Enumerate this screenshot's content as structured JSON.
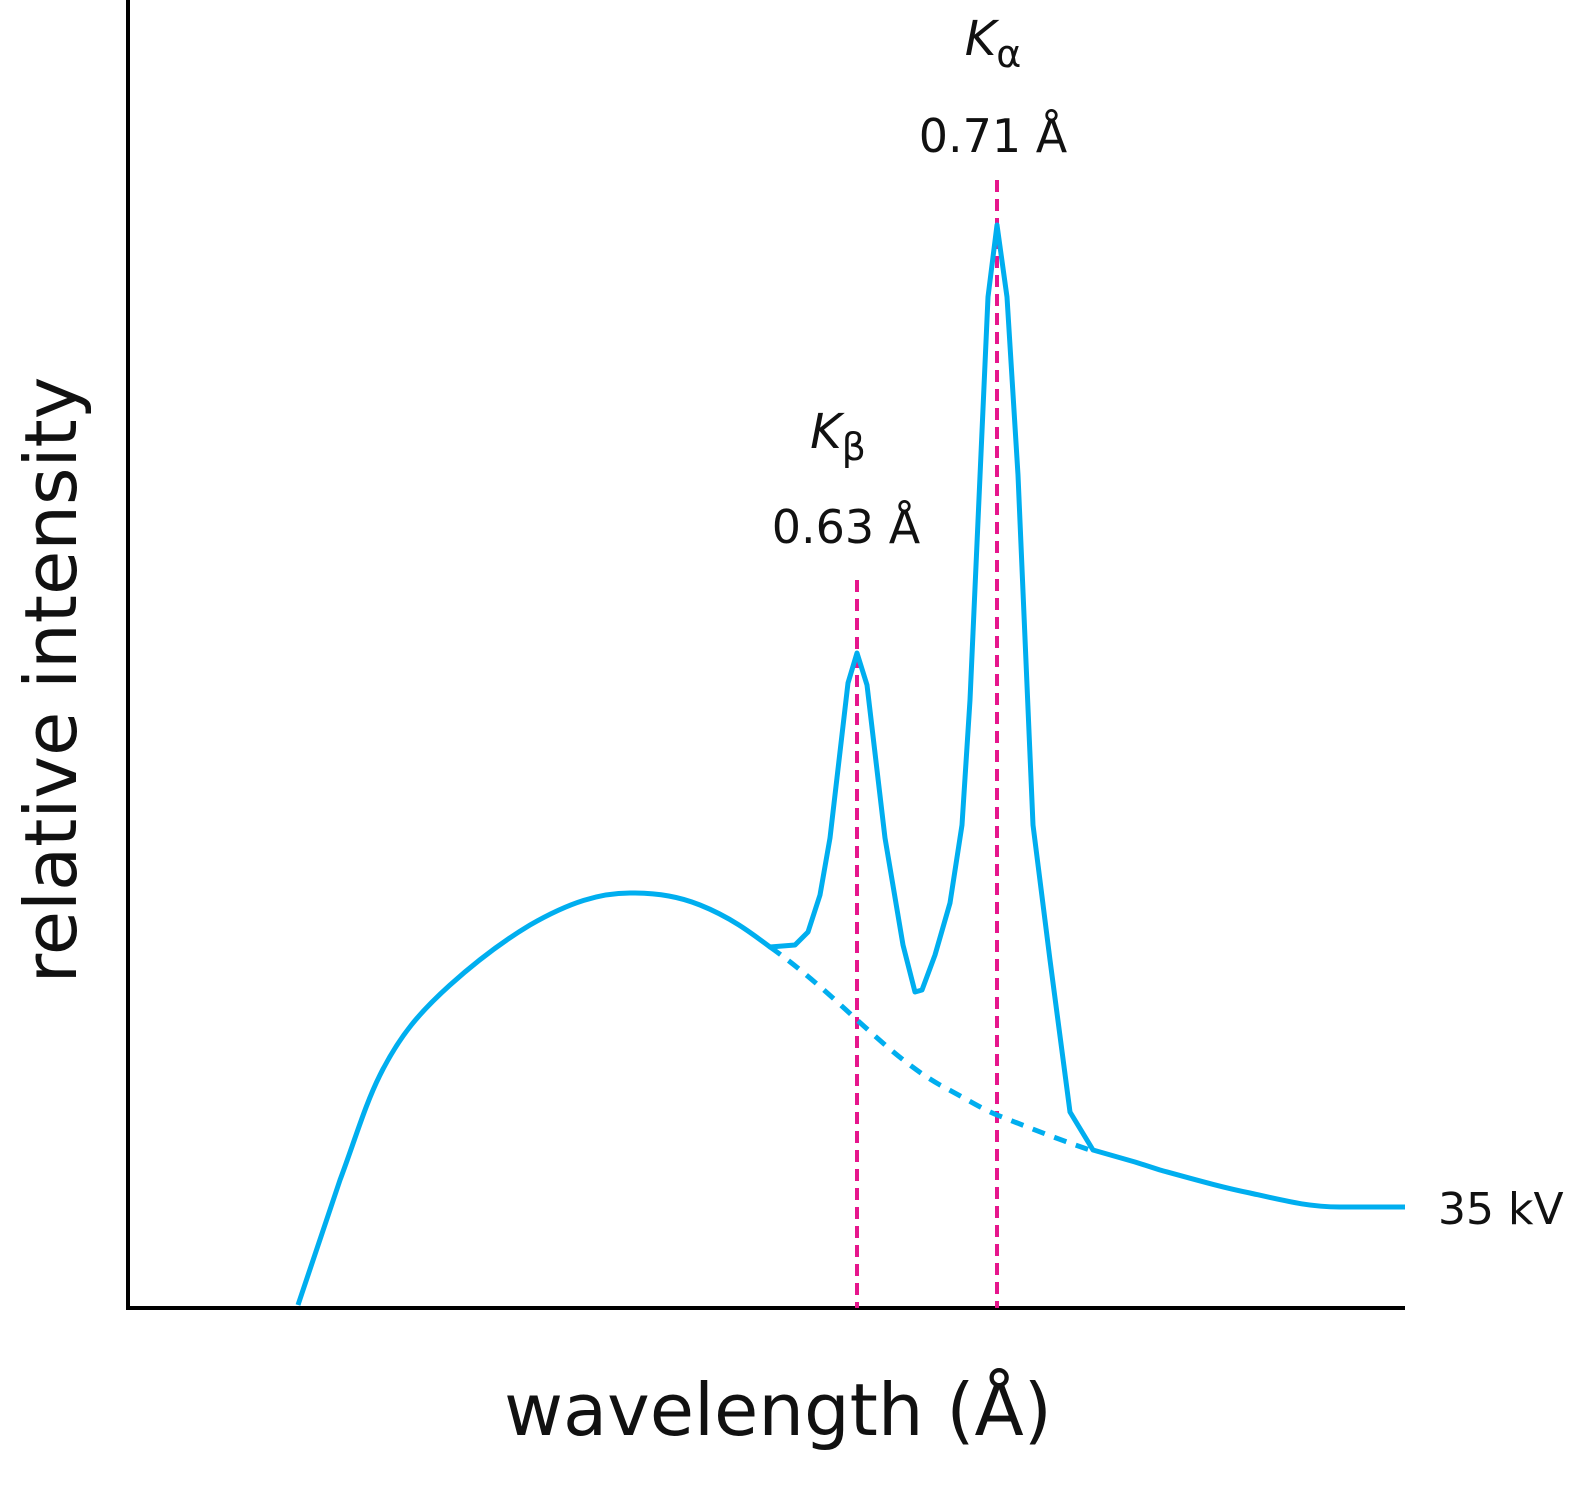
{
  "y_axis_label": "relative intensity",
  "x_axis_label": "wavelength (Å)",
  "annotations": [
    {
      "symbol": "K",
      "subscript": "α",
      "wavelength": "0.71 Å"
    },
    {
      "symbol": "K",
      "subscript": "β",
      "wavelength": "0.63 Å"
    }
  ],
  "curve_label": "35 kV"
}
